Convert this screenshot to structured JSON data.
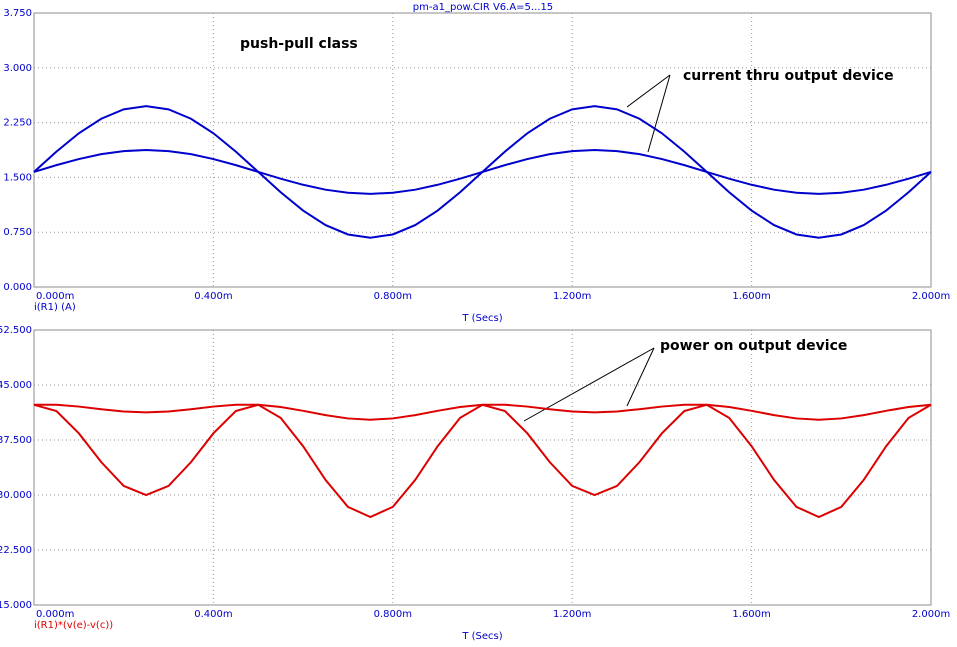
{
  "title": "pm-a1_pow.CIR V6.A=5...15",
  "chart_data": [
    {
      "type": "line",
      "annotations": [
        "push-pull class",
        "current thru output device"
      ],
      "ylabel": "i(R1) (A)",
      "xlabel": "T (Secs)",
      "x": [
        0,
        0.05,
        0.1,
        0.15,
        0.2,
        0.25,
        0.3,
        0.35,
        0.4,
        0.45,
        0.5,
        0.55,
        0.6,
        0.65,
        0.7,
        0.75,
        0.8,
        0.85,
        0.9,
        0.95,
        1.0,
        1.05,
        1.1,
        1.15,
        1.2,
        1.25,
        1.3,
        1.35,
        1.4,
        1.45,
        1.5,
        1.55,
        1.6,
        1.65,
        1.7,
        1.75,
        1.8,
        1.85,
        1.9,
        1.95,
        2.0
      ],
      "series": [
        {
          "color": "#0000cc",
          "values": [
            1.575,
            1.853,
            2.104,
            2.303,
            2.431,
            2.475,
            2.431,
            2.303,
            2.104,
            1.853,
            1.575,
            1.297,
            1.046,
            0.847,
            0.719,
            0.675,
            0.719,
            0.847,
            1.046,
            1.297,
            1.575,
            1.853,
            2.104,
            2.303,
            2.431,
            2.475,
            2.431,
            2.303,
            2.104,
            1.853,
            1.575,
            1.297,
            1.046,
            0.847,
            0.719,
            0.675,
            0.719,
            0.847,
            1.046,
            1.297,
            1.575
          ]
        },
        {
          "color": "#0000cc",
          "values": [
            1.575,
            1.668,
            1.751,
            1.818,
            1.86,
            1.875,
            1.86,
            1.818,
            1.751,
            1.668,
            1.575,
            1.482,
            1.399,
            1.332,
            1.29,
            1.275,
            1.29,
            1.332,
            1.399,
            1.482,
            1.575,
            1.668,
            1.751,
            1.818,
            1.86,
            1.875,
            1.86,
            1.818,
            1.751,
            1.668,
            1.575,
            1.482,
            1.399,
            1.332,
            1.29,
            1.275,
            1.29,
            1.332,
            1.399,
            1.482,
            1.575
          ]
        }
      ],
      "xlim": [
        0,
        2
      ],
      "ylim": [
        0,
        3.75
      ],
      "xticks": [
        {
          "value": 0,
          "label": "0.000m"
        },
        {
          "value": 0.4,
          "label": "0.400m"
        },
        {
          "value": 0.8,
          "label": "0.800m"
        },
        {
          "value": 1.2,
          "label": "1.200m"
        },
        {
          "value": 1.6,
          "label": "1.600m"
        },
        {
          "value": 2,
          "label": "2.000m"
        }
      ],
      "yticks": [
        {
          "value": 0,
          "label": "0.000"
        },
        {
          "value": 0.75,
          "label": "0.750"
        },
        {
          "value": 1.5,
          "label": "1.500"
        },
        {
          "value": 2.25,
          "label": "2.250"
        },
        {
          "value": 3,
          "label": "3.000"
        },
        {
          "value": 3.75,
          "label": "3.750"
        }
      ],
      "grid": true
    },
    {
      "type": "line",
      "annotations": [
        "power on output device"
      ],
      "ylabel": "i(R1)*(v(e)-v(c))",
      "xlabel": "T (Secs)",
      "x": [
        0,
        0.05,
        0.1,
        0.15,
        0.2,
        0.25,
        0.3,
        0.35,
        0.4,
        0.45,
        0.5,
        0.55,
        0.6,
        0.65,
        0.7,
        0.75,
        0.8,
        0.85,
        0.9,
        0.95,
        1.0,
        1.05,
        1.1,
        1.15,
        1.2,
        1.25,
        1.3,
        1.35,
        1.4,
        1.45,
        1.5,
        1.55,
        1.6,
        1.65,
        1.7,
        1.75,
        1.8,
        1.85,
        1.9,
        1.95,
        2.0
      ],
      "series": [
        {
          "color": "#dd0000",
          "values": [
            42.3,
            41.45,
            38.41,
            34.48,
            31.24,
            30.0,
            31.24,
            34.48,
            38.41,
            41.45,
            42.3,
            40.52,
            36.65,
            32.06,
            28.38,
            27.0,
            28.38,
            32.06,
            36.65,
            40.52,
            42.3,
            41.45,
            38.41,
            34.48,
            31.24,
            30.0,
            31.24,
            34.48,
            38.41,
            41.45,
            42.3,
            40.52,
            36.65,
            32.06,
            28.38,
            27.0,
            28.38,
            32.06,
            36.65,
            40.52,
            42.3
          ]
        },
        {
          "color": "#dd0000",
          "values": [
            42.3,
            42.31,
            42.06,
            41.7,
            41.39,
            41.27,
            41.39,
            41.7,
            42.06,
            42.31,
            42.3,
            42.0,
            41.48,
            40.89,
            40.44,
            40.27,
            40.44,
            40.89,
            41.48,
            42.0,
            42.3,
            42.31,
            42.06,
            41.7,
            41.39,
            41.27,
            41.39,
            41.7,
            42.06,
            42.31,
            42.3,
            42.0,
            41.48,
            40.89,
            40.44,
            40.27,
            40.44,
            40.89,
            41.48,
            42.0,
            42.3
          ]
        }
      ],
      "xlim": [
        0,
        2
      ],
      "ylim": [
        15,
        52.5
      ],
      "xticks": [
        {
          "value": 0,
          "label": "0.000m"
        },
        {
          "value": 0.4,
          "label": "0.400m"
        },
        {
          "value": 0.8,
          "label": "0.800m"
        },
        {
          "value": 1.2,
          "label": "1.200m"
        },
        {
          "value": 1.6,
          "label": "1.600m"
        },
        {
          "value": 2,
          "label": "2.000m"
        }
      ],
      "yticks": [
        {
          "value": 15,
          "label": "15.000"
        },
        {
          "value": 22.5,
          "label": "22.500"
        },
        {
          "value": 30,
          "label": "30.000"
        },
        {
          "value": 37.5,
          "label": "37.500"
        },
        {
          "value": 45,
          "label": "45.000"
        },
        {
          "value": 52.5,
          "label": "52.500"
        }
      ],
      "grid": true
    }
  ]
}
